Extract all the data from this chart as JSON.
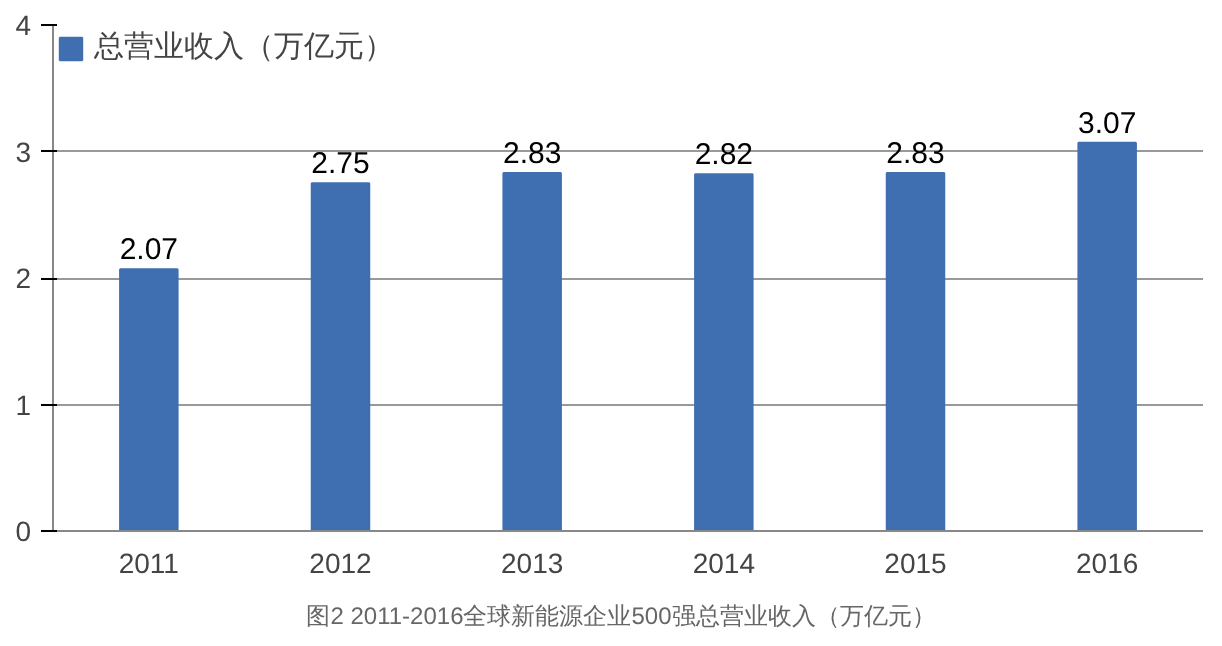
{
  "chart_data": {
    "type": "bar",
    "categories": [
      "2011",
      "2012",
      "2013",
      "2014",
      "2015",
      "2016"
    ],
    "series": [
      {
        "name": "总营业收入（万亿元）",
        "color": "#3f6fb0",
        "values": [
          2.07,
          2.75,
          2.83,
          2.82,
          2.83,
          3.07
        ]
      }
    ],
    "ylim": [
      0,
      4
    ],
    "yticks": [
      0,
      1,
      2,
      3,
      4
    ],
    "grid": "y",
    "data_labels": true,
    "legend": "top left",
    "annotations": [
      "图2 2011-2016全球新能源企业500强总营业收入（万亿元）"
    ]
  }
}
